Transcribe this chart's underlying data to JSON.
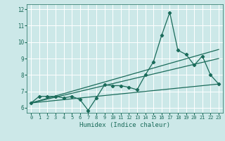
{
  "xlabel": "Humidex (Indice chaleur)",
  "xlim": [
    -0.5,
    23.5
  ],
  "ylim": [
    5.7,
    12.3
  ],
  "xticks": [
    0,
    1,
    2,
    3,
    4,
    5,
    6,
    7,
    8,
    9,
    10,
    11,
    12,
    13,
    14,
    15,
    16,
    17,
    18,
    19,
    20,
    21,
    22,
    23
  ],
  "yticks": [
    6,
    7,
    8,
    9,
    10,
    11,
    12
  ],
  "bg_color": "#cce8e8",
  "grid_color": "#ffffff",
  "line_color": "#1a6b5a",
  "lines": [
    {
      "x": [
        0,
        1,
        2,
        3,
        4,
        5,
        6,
        7,
        8,
        9,
        10,
        11,
        12,
        13,
        14,
        15,
        16,
        17,
        18,
        19,
        20,
        21,
        22,
        23
      ],
      "y": [
        6.3,
        6.7,
        6.7,
        6.7,
        6.6,
        6.7,
        6.5,
        5.85,
        6.6,
        7.4,
        7.35,
        7.35,
        7.25,
        7.1,
        8.0,
        8.8,
        10.4,
        11.8,
        9.5,
        9.25,
        8.6,
        9.15,
        8.0,
        7.45
      ],
      "marker": true
    },
    {
      "x": [
        0,
        23
      ],
      "y": [
        6.3,
        7.45
      ],
      "marker": false
    },
    {
      "x": [
        0,
        23
      ],
      "y": [
        6.3,
        9.0
      ],
      "marker": false
    },
    {
      "x": [
        0,
        23
      ],
      "y": [
        6.3,
        9.55
      ],
      "marker": false
    }
  ]
}
